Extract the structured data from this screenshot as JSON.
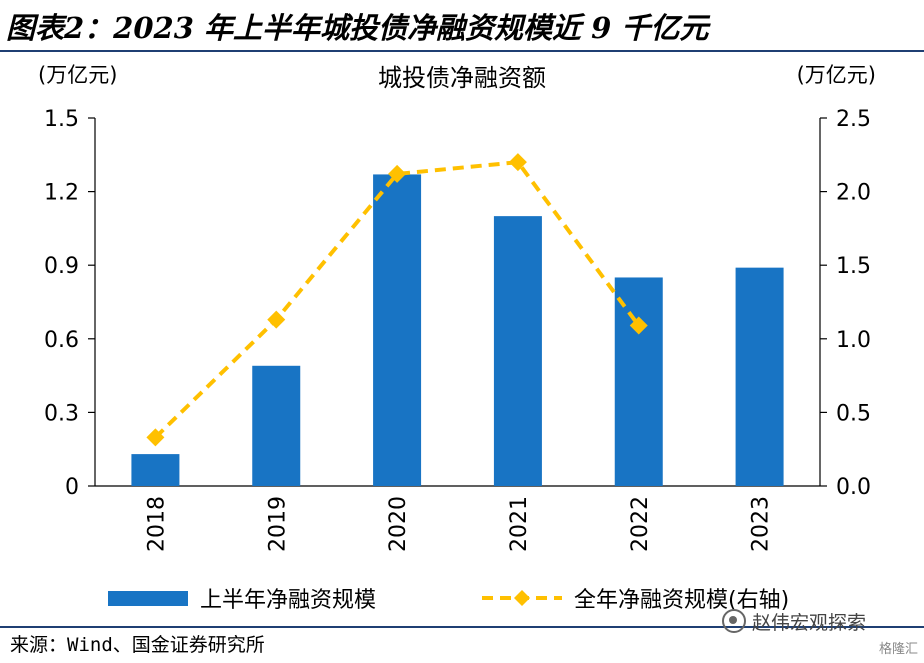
{
  "figure_title": "图表2：2023 年上半年城投债净融资规模近 9 千亿元",
  "source_note": "来源：Wind、国金证券研究所",
  "watermark": "赵伟宏观探索",
  "watermark2": "格隆汇",
  "colors": {
    "bar": "#1874c4",
    "line": "#ffc000",
    "rule": "#1f3f73"
  },
  "chart_data": {
    "type": "bar",
    "title": "城投债净融资额",
    "left_unit": "(万亿元)",
    "right_unit": "(万亿元)",
    "categories": [
      "2018",
      "2019",
      "2020",
      "2021",
      "2022",
      "2023"
    ],
    "ylim_left": [
      0,
      1.5
    ],
    "yticks_left": [
      "0",
      "0.3",
      "0.6",
      "0.9",
      "1.2",
      "1.5"
    ],
    "ylim_right": [
      0,
      2.5
    ],
    "yticks_right": [
      "0.0",
      "0.5",
      "1.0",
      "1.5",
      "2.0",
      "2.5"
    ],
    "grid": false,
    "legend_position": "bottom",
    "series": [
      {
        "name": "上半年净融资规模",
        "type": "bar",
        "axis": "left",
        "values": [
          0.13,
          0.49,
          1.27,
          1.1,
          0.85,
          0.89
        ]
      },
      {
        "name": "全年净融资规模(右轴)",
        "type": "line",
        "axis": "right",
        "marker": "diamond",
        "style": "dashed",
        "values": [
          0.33,
          1.13,
          2.12,
          2.2,
          1.09,
          null
        ]
      }
    ]
  }
}
